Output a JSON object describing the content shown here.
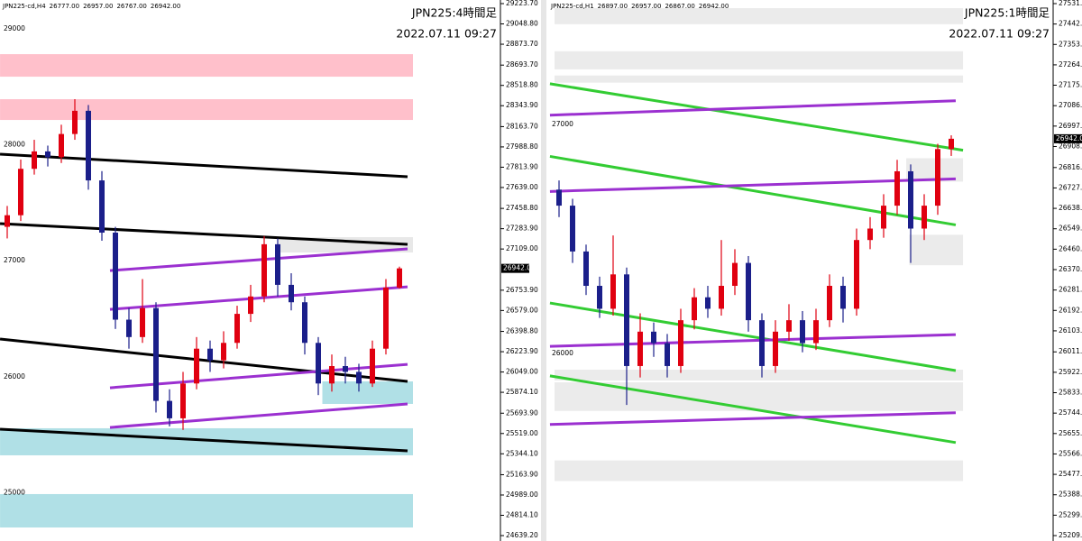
{
  "chart_data": [
    {
      "type": "candlestick",
      "title": "JPN225:4時間足",
      "timestamp": "2022.07.11 09:27",
      "symbol": "JPN225-cd,H4",
      "quote": [
        {
          "value": 26777,
          "label": "26777.00"
        },
        {
          "value": 26957,
          "label": "26957.00"
        },
        {
          "value": 26767,
          "label": "26767.00"
        },
        {
          "value": 26942,
          "label": "26942.00"
        }
      ],
      "up_color": "#e00010",
      "down_color": "#1b1f8a",
      "open": [
        27300,
        27400,
        27800,
        27950,
        27900,
        28100,
        28300,
        27700,
        27250,
        26500,
        26350,
        26600,
        25800,
        25650,
        25950,
        26250,
        26150,
        26300,
        26550,
        26700,
        27150,
        26800,
        26650,
        26300,
        25950,
        26100,
        26050,
        25950,
        26250,
        26777
      ],
      "high": [
        27480,
        27880,
        28050,
        28000,
        28180,
        28400,
        28350,
        27780,
        27300,
        26600,
        26850,
        26650,
        25900,
        26050,
        26350,
        26320,
        26400,
        26620,
        26800,
        27220,
        27200,
        26900,
        26700,
        26350,
        26200,
        26180,
        26120,
        26320,
        26850,
        26957
      ],
      "low": [
        27200,
        27350,
        27750,
        27820,
        27850,
        28050,
        27620,
        27180,
        26420,
        26250,
        26300,
        25700,
        25580,
        25550,
        25900,
        26050,
        26080,
        26250,
        26480,
        26650,
        26700,
        26580,
        26200,
        25850,
        25880,
        25950,
        25880,
        25920,
        26200,
        26767
      ],
      "close": [
        27400,
        27800,
        27950,
        27900,
        28100,
        28300,
        27700,
        27250,
        26500,
        26350,
        26600,
        25800,
        25650,
        25950,
        26250,
        26150,
        26300,
        26550,
        26700,
        27150,
        26800,
        26650,
        26300,
        25950,
        26100,
        26050,
        25950,
        26250,
        26777,
        26942
      ],
      "ylim": [
        24639.2,
        29223.7
      ],
      "yticks": [
        {
          "value": 29223.7,
          "label": "29223.70"
        },
        {
          "value": 29048.8,
          "label": "29048.80"
        },
        {
          "value": 28873.7,
          "label": "28873.70"
        },
        {
          "value": 28693.7,
          "label": "28693.70"
        },
        {
          "value": 28518.8,
          "label": "28518.80"
        },
        {
          "value": 28343.9,
          "label": "28343.90"
        },
        {
          "value": 28163.7,
          "label": "28163.70"
        },
        {
          "value": 27988.8,
          "label": "27988.80"
        },
        {
          "value": 27813.9,
          "label": "27813.90"
        },
        {
          "value": 27639,
          "label": "27639.00"
        },
        {
          "value": 27458.8,
          "label": "27458.80"
        },
        {
          "value": 27283.9,
          "label": "27283.90"
        },
        {
          "value": 27109,
          "label": "27109.00"
        },
        {
          "value": 26753.9,
          "label": "26753.90"
        },
        {
          "value": 26579,
          "label": "26579.00"
        },
        {
          "value": 26398.8,
          "label": "26398.80"
        },
        {
          "value": 26223.9,
          "label": "26223.90"
        },
        {
          "value": 26049,
          "label": "26049.00"
        },
        {
          "value": 25874.1,
          "label": "25874.10"
        },
        {
          "value": 25693.9,
          "label": "25693.90"
        },
        {
          "value": 25519,
          "label": "25519.00"
        },
        {
          "value": 25344.1,
          "label": "25344.10"
        },
        {
          "value": 25163.9,
          "label": "25163.90"
        },
        {
          "value": 24989,
          "label": "24989.00"
        },
        {
          "value": 24814.1,
          "label": "24814.10"
        },
        {
          "value": 24639.2,
          "label": "24639.20"
        }
      ],
      "level_ticks": [
        29000,
        28000,
        27000,
        26000,
        25000
      ],
      "last_price": {
        "value": 26942,
        "label": "26942.00"
      },
      "zones": [
        {
          "color": "#ffc0cb",
          "x": [
            -0.53,
            30
          ],
          "y": [
            28594,
            28788
          ]
        },
        {
          "color": "#ffc0cb",
          "x": [
            -0.53,
            30
          ],
          "y": [
            28221,
            28400
          ]
        },
        {
          "color": "#e8e8e8",
          "x": [
            20.1,
            30
          ],
          "y": [
            27079,
            27211
          ]
        },
        {
          "color": "#b0e0e6",
          "x": [
            23.3,
            30
          ],
          "y": [
            25774,
            25968
          ]
        },
        {
          "color": "#b0e0e6",
          "x": [
            -0.53,
            30
          ],
          "y": [
            25331,
            25564
          ]
        },
        {
          "color": "#b0e0e6",
          "x": [
            -0.53,
            30
          ],
          "y": [
            24709,
            24997
          ]
        }
      ],
      "lines": [
        {
          "color": "#000000",
          "x": [
            -0.53,
            29.6
          ],
          "y": [
            27926,
            27732
          ]
        },
        {
          "color": "#000000",
          "x": [
            -0.53,
            29.6
          ],
          "y": [
            27328,
            27149
          ]
        },
        {
          "color": "#000000",
          "x": [
            -0.53,
            29.6
          ],
          "y": [
            26333,
            25968
          ]
        },
        {
          "color": "#000000",
          "x": [
            -0.53,
            29.6
          ],
          "y": [
            25556,
            25370
          ]
        },
        {
          "color": "#9b30d0",
          "x": [
            7.6,
            29.6
          ],
          "y": [
            26923,
            27110
          ]
        },
        {
          "color": "#9b30d0",
          "x": [
            7.6,
            29.6
          ],
          "y": [
            26589,
            26783
          ]
        },
        {
          "color": "#9b30d0",
          "x": [
            7.6,
            29.6
          ],
          "y": [
            25913,
            26115
          ]
        },
        {
          "color": "#9b30d0",
          "x": [
            7.6,
            29.6
          ],
          "y": [
            25571,
            25774
          ]
        }
      ]
    },
    {
      "type": "candlestick",
      "title": "JPN225:1時間足",
      "timestamp": "2022.07.11 09:27",
      "symbol": "JPN225-cd,H1",
      "quote": [
        {
          "value": 26897,
          "label": "26897.00"
        },
        {
          "value": 26957,
          "label": "26957.00"
        },
        {
          "value": 26867,
          "label": "26867.00"
        },
        {
          "value": 26942,
          "label": "26942.00"
        }
      ],
      "up_color": "#e00010",
      "down_color": "#1b1f8a",
      "open": [
        26720,
        26650,
        26450,
        26300,
        26200,
        26350,
        25950,
        26100,
        26050,
        25950,
        26150,
        26250,
        26200,
        26300,
        26400,
        26150,
        25950,
        26100,
        26150,
        26050,
        26150,
        26300,
        26200,
        26500,
        26550,
        26650,
        26800,
        26550,
        26650,
        26897
      ],
      "high": [
        26760,
        26680,
        26480,
        26340,
        26520,
        26380,
        26180,
        26140,
        26090,
        26200,
        26290,
        26300,
        26500,
        26460,
        26430,
        26180,
        26150,
        26220,
        26190,
        26200,
        26350,
        26340,
        26550,
        26600,
        26700,
        26850,
        26830,
        26700,
        26920,
        26957
      ],
      "low": [
        26600,
        26400,
        26260,
        26160,
        26170,
        25780,
        25900,
        25990,
        25900,
        25920,
        26110,
        26160,
        26170,
        26260,
        26100,
        25900,
        25920,
        26060,
        26010,
        26020,
        26120,
        26140,
        26170,
        26460,
        26510,
        26610,
        26400,
        26500,
        26610,
        26867
      ],
      "close": [
        26650,
        26450,
        26300,
        26200,
        26350,
        25950,
        26100,
        26050,
        25950,
        26150,
        26250,
        26200,
        26300,
        26400,
        26150,
        25950,
        26100,
        26150,
        26050,
        26150,
        26300,
        26200,
        26500,
        26550,
        26650,
        26800,
        26550,
        26650,
        26897,
        26942
      ],
      "ylim": [
        25209.9,
        27531.9
      ],
      "yticks": [
        {
          "value": 27531.9,
          "label": "27531.90"
        },
        {
          "value": 27442.8,
          "label": "27442.80"
        },
        {
          "value": 27353.7,
          "label": "27353.70"
        },
        {
          "value": 27264.6,
          "label": "27264.60"
        },
        {
          "value": 27175.8,
          "label": "27175.80"
        },
        {
          "value": 27086.4,
          "label": "27086.40"
        },
        {
          "value": 26997.3,
          "label": "26997.30"
        },
        {
          "value": 26908.2,
          "label": "26908.20"
        },
        {
          "value": 26816.4,
          "label": "26816.40"
        },
        {
          "value": 26727.3,
          "label": "26727.30"
        },
        {
          "value": 26638.2,
          "label": "26638.20"
        },
        {
          "value": 26549.1,
          "label": "26549.10"
        },
        {
          "value": 26460,
          "label": "26460.00"
        },
        {
          "value": 26370.9,
          "label": "26370.90"
        },
        {
          "value": 26281.8,
          "label": "26281.80"
        },
        {
          "value": 26192.7,
          "label": "26192.70"
        },
        {
          "value": 26103.6,
          "label": "26103.60"
        },
        {
          "value": 26011.8,
          "label": "26011.80"
        },
        {
          "value": 25922.7,
          "label": "25922.70"
        },
        {
          "value": 25833.6,
          "label": "25833.60"
        },
        {
          "value": 25744.5,
          "label": "25744.50"
        },
        {
          "value": 25655.4,
          "label": "25655.40"
        },
        {
          "value": 25566.3,
          "label": "25566.30"
        },
        {
          "value": 25477.2,
          "label": "25477.20"
        },
        {
          "value": 25388.1,
          "label": "25388.10"
        },
        {
          "value": 25299,
          "label": "25299.00"
        },
        {
          "value": 25209.9,
          "label": "25209.90"
        }
      ],
      "level_ticks": [
        27000,
        26000
      ],
      "last_price": {
        "value": 26942,
        "label": "26942.00"
      },
      "zones": [
        {
          "color": "#ebebeb",
          "x": [
            -0.33,
            29.87
          ],
          "y": [
            27442,
            27512
          ]
        },
        {
          "color": "#ebebeb",
          "x": [
            -0.33,
            29.87
          ],
          "y": [
            27245,
            27324
          ]
        },
        {
          "color": "#ebebeb",
          "x": [
            -0.33,
            29.87
          ],
          "y": [
            27187,
            27218
          ]
        },
        {
          "color": "#ebebeb",
          "x": [
            25.67,
            29.87
          ],
          "y": [
            26755,
            26857
          ]
        },
        {
          "color": "#ebebeb",
          "x": [
            25.9,
            29.87
          ],
          "y": [
            26390,
            26523
          ]
        },
        {
          "color": "#ebebeb",
          "x": [
            -0.33,
            29.87
          ],
          "y": [
            25887,
            25934
          ]
        },
        {
          "color": "#ebebeb",
          "x": [
            -0.33,
            29.87
          ],
          "y": [
            25754,
            25879
          ]
        },
        {
          "color": "#ebebeb",
          "x": [
            -0.33,
            29.87
          ],
          "y": [
            25448,
            25538
          ]
        }
      ],
      "lines": [
        {
          "color": "#33cc33",
          "x": [
            -0.67,
            29.87
          ],
          "y": [
            27182,
            26892
          ]
        },
        {
          "color": "#33cc33",
          "x": [
            -0.67,
            29.33
          ],
          "y": [
            26865,
            26566
          ]
        },
        {
          "color": "#33cc33",
          "x": [
            -0.67,
            29.33
          ],
          "y": [
            26225,
            25930
          ]
        },
        {
          "color": "#33cc33",
          "x": [
            -0.67,
            29.33
          ],
          "y": [
            25907,
            25616
          ]
        },
        {
          "color": "#9b30d0",
          "x": [
            -0.67,
            29.33
          ],
          "y": [
            27045,
            27108
          ]
        },
        {
          "color": "#9b30d0",
          "x": [
            -0.67,
            29.33
          ],
          "y": [
            26712,
            26767
          ]
        },
        {
          "color": "#9b30d0",
          "x": [
            -0.67,
            29.33
          ],
          "y": [
            26036,
            26087
          ]
        },
        {
          "color": "#9b30d0",
          "x": [
            -0.67,
            29.33
          ],
          "y": [
            25695,
            25746
          ]
        }
      ]
    }
  ]
}
